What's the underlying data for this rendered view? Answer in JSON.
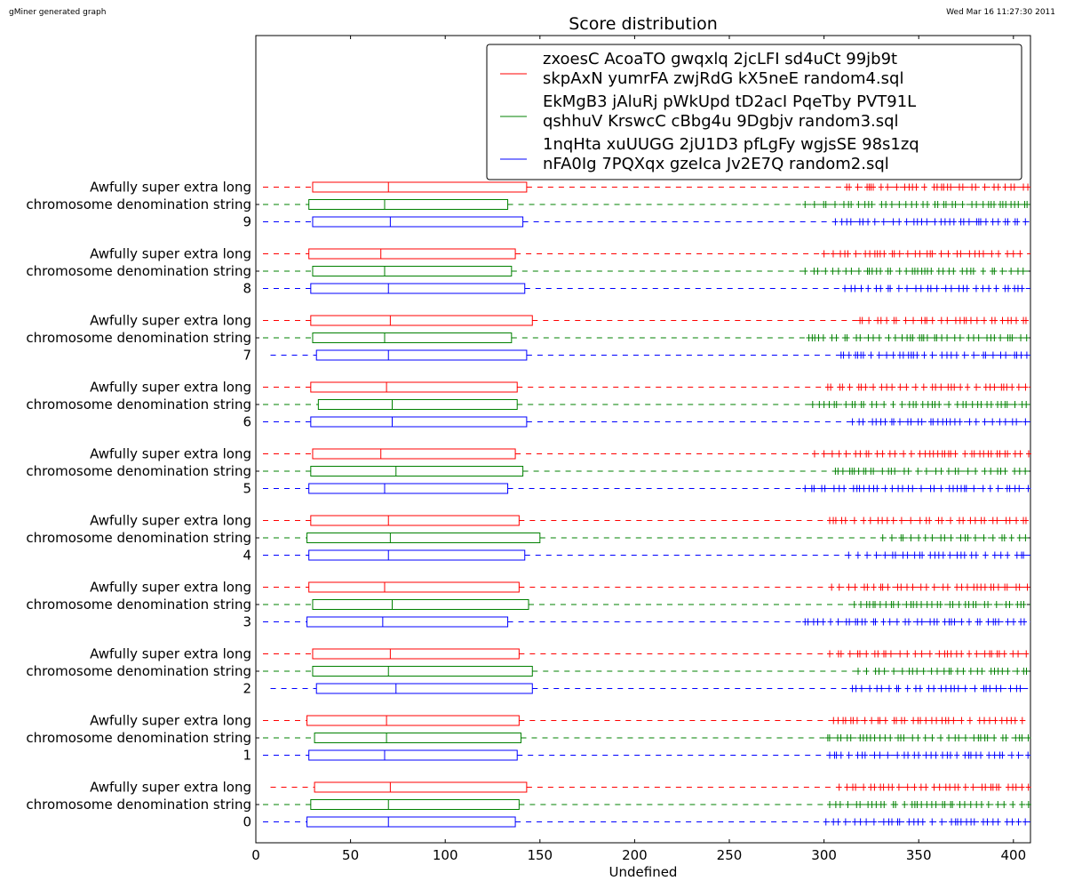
{
  "header": {
    "left_note": "gMiner generated graph",
    "right_note": "Wed Mar 16 11:27:30 2011"
  },
  "chart_data": {
    "type": "boxplot",
    "orientation": "horizontal",
    "title": "Score distribution",
    "xlabel": "Undefined",
    "ylabel": "",
    "xlim": [
      0,
      409
    ],
    "xticks": [
      0,
      50,
      100,
      150,
      200,
      250,
      300,
      350,
      400
    ],
    "grid": false,
    "legend_position": "top-right",
    "series": [
      {
        "name": "zxoesC AcoaTO gwqxlq 2jcLFI sd4uCt 99jb9t skpAxN yumrFA zwjRdG kX5neE random4.sql",
        "color": "#ff0000"
      },
      {
        "name": "EkMgB3 jAluRj pWkUpd tD2acI PqeTby PVT91L qshhuV KrswcC cBbg4u 9Dgbjv random3.sql",
        "color": "#008000"
      },
      {
        "name": "1nqHta xuUUGG 2jU1D3 pfLgFy wgjsSE 98s1zq nFA0Ig 7PQXqx gzeIca Jv2E7Q random2.sql",
        "color": "#0000ff"
      }
    ],
    "groups": [
      {
        "label_line1": "Awfully super extra long",
        "label_line2": "chromosome denomination string",
        "label_line3": "9",
        "boxes": [
          {
            "q1": 30,
            "median": 70,
            "q3": 143,
            "whisker_low": 0,
            "flier_start": 312
          },
          {
            "q1": 28,
            "median": 68,
            "q3": 133,
            "whisker_low": 0,
            "flier_start": 290
          },
          {
            "q1": 30,
            "median": 71,
            "q3": 141,
            "whisker_low": 0,
            "flier_start": 306
          }
        ]
      },
      {
        "label_line1": "Awfully super extra long",
        "label_line2": "chromosome denomination string",
        "label_line3": "8",
        "boxes": [
          {
            "q1": 28,
            "median": 66,
            "q3": 137,
            "whisker_low": 0,
            "flier_start": 300
          },
          {
            "q1": 30,
            "median": 68,
            "q3": 135,
            "whisker_low": 0,
            "flier_start": 290
          },
          {
            "q1": 29,
            "median": 70,
            "q3": 142,
            "whisker_low": 0,
            "flier_start": 311
          }
        ]
      },
      {
        "label_line1": "Awfully super extra long",
        "label_line2": "chromosome denomination string",
        "label_line3": "7",
        "boxes": [
          {
            "q1": 29,
            "median": 71,
            "q3": 146,
            "whisker_low": 0,
            "flier_start": 319
          },
          {
            "q1": 30,
            "median": 68,
            "q3": 135,
            "whisker_low": 0,
            "flier_start": 292
          },
          {
            "q1": 32,
            "median": 70,
            "q3": 143,
            "whisker_low": 4,
            "flier_start": 309
          }
        ]
      },
      {
        "label_line1": "Awfully super extra long",
        "label_line2": "chromosome denomination string",
        "label_line3": "6",
        "boxes": [
          {
            "q1": 29,
            "median": 69,
            "q3": 138,
            "whisker_low": 0,
            "flier_start": 302
          },
          {
            "q1": 33,
            "median": 72,
            "q3": 138,
            "whisker_low": 0,
            "flier_start": 294
          },
          {
            "q1": 29,
            "median": 72,
            "q3": 143,
            "whisker_low": 0,
            "flier_start": 315
          }
        ]
      },
      {
        "label_line1": "Awfully super extra long",
        "label_line2": "chromosome denomination string",
        "label_line3": "5",
        "boxes": [
          {
            "q1": 30,
            "median": 66,
            "q3": 137,
            "whisker_low": 0,
            "flier_start": 295
          },
          {
            "q1": 29,
            "median": 74,
            "q3": 141,
            "whisker_low": 0,
            "flier_start": 306
          },
          {
            "q1": 28,
            "median": 68,
            "q3": 133,
            "whisker_low": 0,
            "flier_start": 290
          }
        ]
      },
      {
        "label_line1": "Awfully super extra long",
        "label_line2": "chromosome denomination string",
        "label_line3": "4",
        "boxes": [
          {
            "q1": 29,
            "median": 70,
            "q3": 139,
            "whisker_low": 0,
            "flier_start": 303
          },
          {
            "q1": 27,
            "median": 71,
            "q3": 150,
            "whisker_low": 0,
            "flier_start": 331
          },
          {
            "q1": 28,
            "median": 70,
            "q3": 142,
            "whisker_low": 0,
            "flier_start": 313
          }
        ]
      },
      {
        "label_line1": "Awfully super extra long",
        "label_line2": "chromosome denomination string",
        "label_line3": "3",
        "boxes": [
          {
            "q1": 28,
            "median": 68,
            "q3": 139,
            "whisker_low": 0,
            "flier_start": 304
          },
          {
            "q1": 30,
            "median": 72,
            "q3": 144,
            "whisker_low": 0,
            "flier_start": 316
          },
          {
            "q1": 27,
            "median": 67,
            "q3": 133,
            "whisker_low": 0,
            "flier_start": 290
          }
        ]
      },
      {
        "label_line1": "Awfully super extra long",
        "label_line2": "chromosome denomination string",
        "label_line3": "2",
        "boxes": [
          {
            "q1": 30,
            "median": 71,
            "q3": 139,
            "whisker_low": 0,
            "flier_start": 303
          },
          {
            "q1": 30,
            "median": 70,
            "q3": 146,
            "whisker_low": 0,
            "flier_start": 318
          },
          {
            "q1": 32,
            "median": 74,
            "q3": 146,
            "whisker_low": 4,
            "flier_start": 315
          }
        ]
      },
      {
        "label_line1": "Awfully super extra long",
        "label_line2": "chromosome denomination string",
        "label_line3": "1",
        "boxes": [
          {
            "q1": 27,
            "median": 69,
            "q3": 139,
            "whisker_low": 0,
            "flier_start": 305
          },
          {
            "q1": 31,
            "median": 69,
            "q3": 140,
            "whisker_low": 0,
            "flier_start": 302
          },
          {
            "q1": 28,
            "median": 68,
            "q3": 138,
            "whisker_low": 0,
            "flier_start": 303
          }
        ]
      },
      {
        "label_line1": "Awfully super extra long",
        "label_line2": "chromosome denomination string",
        "label_line3": "0",
        "boxes": [
          {
            "q1": 31,
            "median": 71,
            "q3": 143,
            "whisker_low": 4,
            "flier_start": 308
          },
          {
            "q1": 29,
            "median": 70,
            "q3": 139,
            "whisker_low": 0,
            "flier_start": 303
          },
          {
            "q1": 27,
            "median": 70,
            "q3": 137,
            "whisker_low": 0,
            "flier_start": 301
          }
        ]
      }
    ]
  }
}
